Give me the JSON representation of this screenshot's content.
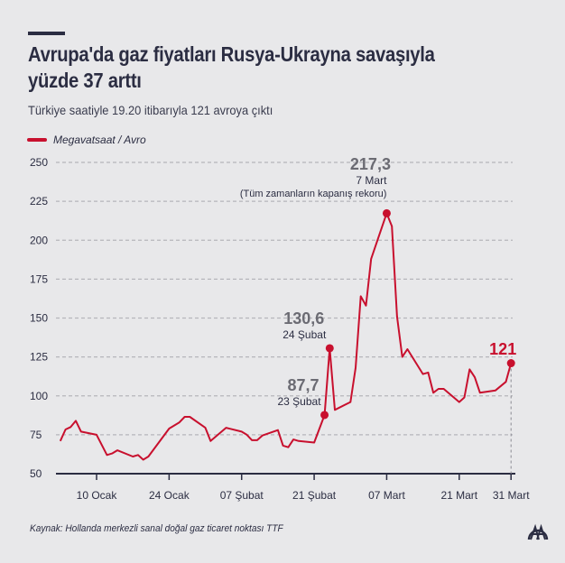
{
  "header": {
    "title_line1": "Avrupa'da gaz fiyatları Rusya-Ukrayna savaşıyla",
    "title_line2": "yüzde 37 arttı",
    "subtitle": "Türkiye saatiyle 19.20 itibarıyla 121 avroya çıktı"
  },
  "footer": {
    "source": "Kaynak: Hollanda merkezli sanal doğal gaz ticaret noktası TTF",
    "logo": "AA"
  },
  "chart_data": {
    "type": "line",
    "title": "Avrupa'da gaz fiyatları Rusya-Ukrayna savaşıyla yüzde 37 arttı",
    "subtitle": "Türkiye saatiyle 19.20 itibarıyla 121 avroya çıktı",
    "ylim": [
      50,
      250
    ],
    "yticks": [
      50,
      75,
      100,
      125,
      150,
      175,
      200,
      225,
      250
    ],
    "grid": true,
    "legend_placement": "top-left",
    "color": "#c8102e",
    "series": [
      {
        "name": "Megavatsaat / Avro",
        "points": [
          [
            "01-03",
            71
          ],
          [
            "01-04",
            78.4
          ],
          [
            "01-05",
            80
          ],
          [
            "01-06",
            84
          ],
          [
            "01-07",
            77
          ],
          [
            "01-10",
            75
          ],
          [
            "01-12",
            62
          ],
          [
            "01-13",
            63
          ],
          [
            "01-14",
            65
          ],
          [
            "01-17",
            61
          ],
          [
            "01-18",
            62
          ],
          [
            "01-19",
            59
          ],
          [
            "01-20",
            61
          ],
          [
            "01-24",
            79
          ],
          [
            "01-26",
            83
          ],
          [
            "01-27",
            86.5
          ],
          [
            "01-28",
            86.5
          ],
          [
            "01-31",
            79.5
          ],
          [
            "02-01",
            71
          ],
          [
            "02-04",
            79.5
          ],
          [
            "02-07",
            77
          ],
          [
            "02-08",
            75
          ],
          [
            "02-09",
            71.5
          ],
          [
            "02-10",
            71.5
          ],
          [
            "02-11",
            74.5
          ],
          [
            "02-14",
            78
          ],
          [
            "02-15",
            68
          ],
          [
            "02-16",
            67
          ],
          [
            "02-17",
            72
          ],
          [
            "02-18",
            71
          ],
          [
            "02-21",
            70
          ],
          [
            "02-23",
            87.7
          ],
          [
            "02-24",
            130.6
          ],
          [
            "02-25",
            91
          ],
          [
            "02-28",
            96
          ],
          [
            "03-01",
            118
          ],
          [
            "03-02",
            164
          ],
          [
            "03-03",
            158
          ],
          [
            "03-04",
            188
          ],
          [
            "03-07",
            217.3
          ],
          [
            "03-08",
            209
          ],
          [
            "03-09",
            151
          ],
          [
            "03-10",
            125
          ],
          [
            "03-11",
            130
          ],
          [
            "03-14",
            114
          ],
          [
            "03-15",
            115
          ],
          [
            "03-16",
            102
          ],
          [
            "03-17",
            104.5
          ],
          [
            "03-18",
            104.5
          ],
          [
            "03-21",
            96
          ],
          [
            "03-22",
            99
          ],
          [
            "03-23",
            117
          ],
          [
            "03-24",
            112
          ],
          [
            "03-25",
            102
          ],
          [
            "03-28",
            103.5
          ],
          [
            "03-30",
            109
          ],
          [
            "03-31",
            121
          ]
        ]
      }
    ],
    "xticks": [
      {
        "date": "01-10",
        "label": "10 Ocak"
      },
      {
        "date": "01-24",
        "label": "24 Ocak"
      },
      {
        "date": "02-07",
        "label": "07 Şubat"
      },
      {
        "date": "02-21",
        "label": "21 Şubat"
      },
      {
        "date": "03-07",
        "label": "07 Mart"
      },
      {
        "date": "03-21",
        "label": "21 Mart"
      },
      {
        "date": "03-31",
        "label": "31 Mart"
      }
    ],
    "annotations": [
      {
        "date": "02-23",
        "value": 87.7,
        "value_label": "87,7",
        "date_label": "23 Şubat",
        "note": ""
      },
      {
        "date": "02-24",
        "value": 130.6,
        "value_label": "130,6",
        "date_label": "24 Şubat",
        "note": ""
      },
      {
        "date": "03-07",
        "value": 217.3,
        "value_label": "217,3",
        "date_label": "7 Mart",
        "note": "(Tüm zamanların kapanış rekoru)"
      },
      {
        "date": "03-31",
        "value": 121,
        "value_label": "121",
        "date_label": "",
        "note": ""
      }
    ]
  }
}
